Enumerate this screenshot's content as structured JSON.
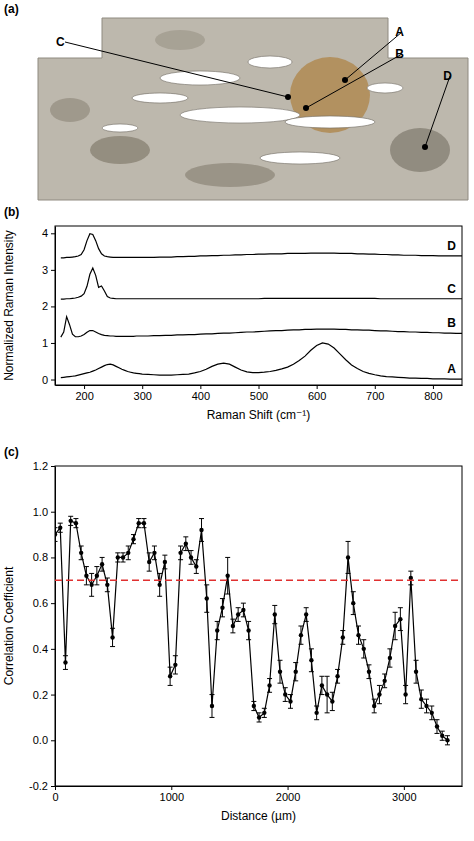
{
  "chart_data": [
    {
      "type": "image",
      "title": "(a)",
      "labels": [
        "C",
        "A",
        "B",
        "D"
      ]
    },
    {
      "type": "line",
      "title": "(b)",
      "x_label": "Raman Shift (cm⁻¹)",
      "y_label": "Normalized Raman Intensity",
      "xlim": [
        150,
        850
      ],
      "xticks": [
        200,
        300,
        400,
        500,
        600,
        700,
        800
      ],
      "ylim": [
        -0.15,
        4.2
      ],
      "yticks": [
        0,
        1,
        2,
        3,
        4
      ],
      "x": [
        160,
        165,
        170,
        175,
        180,
        185,
        190,
        195,
        200,
        205,
        210,
        215,
        220,
        225,
        230,
        235,
        240,
        245,
        250,
        255,
        260,
        265,
        270,
        275,
        280,
        285,
        290,
        295,
        300,
        310,
        320,
        330,
        340,
        350,
        360,
        370,
        380,
        390,
        400,
        410,
        420,
        430,
        440,
        450,
        460,
        470,
        480,
        490,
        500,
        510,
        520,
        530,
        540,
        550,
        560,
        570,
        580,
        590,
        600,
        610,
        620,
        630,
        640,
        650,
        660,
        670,
        680,
        690,
        700,
        710,
        720,
        730,
        740,
        750,
        760,
        770,
        780,
        790,
        800,
        810,
        820,
        830,
        840,
        850
      ],
      "series": [
        {
          "name": "A",
          "color": "#000000",
          "values": [
            0.05,
            0.06,
            0.07,
            0.08,
            0.09,
            0.1,
            0.12,
            0.14,
            0.16,
            0.18,
            0.2,
            0.23,
            0.26,
            0.3,
            0.34,
            0.38,
            0.41,
            0.42,
            0.4,
            0.36,
            0.32,
            0.28,
            0.25,
            0.22,
            0.2,
            0.18,
            0.17,
            0.16,
            0.15,
            0.14,
            0.13,
            0.12,
            0.12,
            0.12,
            0.13,
            0.14,
            0.15,
            0.18,
            0.22,
            0.28,
            0.36,
            0.42,
            0.45,
            0.42,
            0.34,
            0.26,
            0.21,
            0.19,
            0.19,
            0.2,
            0.22,
            0.25,
            0.29,
            0.34,
            0.42,
            0.52,
            0.64,
            0.8,
            0.93,
            1.0,
            0.97,
            0.86,
            0.7,
            0.54,
            0.4,
            0.3,
            0.22,
            0.17,
            0.13,
            0.1,
            0.08,
            0.07,
            0.06,
            0.05,
            0.04,
            0.04,
            0.03,
            0.03,
            0.02,
            0.02,
            0.02,
            0.01,
            0.01,
            0.01
          ]
        },
        {
          "name": "B",
          "color": "#000000",
          "values": [
            1.16,
            1.3,
            1.72,
            1.5,
            1.24,
            1.17,
            1.17,
            1.19,
            1.23,
            1.29,
            1.34,
            1.34,
            1.3,
            1.26,
            1.23,
            1.21,
            1.2,
            1.19,
            1.19,
            1.18,
            1.18,
            1.18,
            1.18,
            1.18,
            1.18,
            1.18,
            1.19,
            1.19,
            1.19,
            1.19,
            1.2,
            1.2,
            1.21,
            1.21,
            1.22,
            1.22,
            1.23,
            1.23,
            1.24,
            1.25,
            1.25,
            1.26,
            1.27,
            1.27,
            1.28,
            1.29,
            1.3,
            1.3,
            1.31,
            1.32,
            1.33,
            1.34,
            1.34,
            1.35,
            1.36,
            1.36,
            1.37,
            1.37,
            1.38,
            1.38,
            1.38,
            1.38,
            1.37,
            1.37,
            1.36,
            1.36,
            1.35,
            1.35,
            1.34,
            1.33,
            1.33,
            1.32,
            1.31,
            1.31,
            1.3,
            1.3,
            1.29,
            1.29,
            1.28,
            1.28,
            1.27,
            1.27,
            1.26,
            1.26
          ]
        },
        {
          "name": "C",
          "color": "#000000",
          "values": [
            2.2,
            2.2,
            2.21,
            2.21,
            2.22,
            2.23,
            2.25,
            2.28,
            2.35,
            2.55,
            2.88,
            3.05,
            2.85,
            2.52,
            2.56,
            2.42,
            2.27,
            2.23,
            2.22,
            2.21,
            2.21,
            2.21,
            2.21,
            2.21,
            2.21,
            2.21,
            2.21,
            2.21,
            2.21,
            2.21,
            2.21,
            2.21,
            2.21,
            2.21,
            2.21,
            2.21,
            2.21,
            2.21,
            2.21,
            2.21,
            2.21,
            2.21,
            2.21,
            2.21,
            2.21,
            2.21,
            2.21,
            2.21,
            2.21,
            2.22,
            2.22,
            2.22,
            2.22,
            2.22,
            2.22,
            2.22,
            2.22,
            2.22,
            2.22,
            2.22,
            2.22,
            2.22,
            2.22,
            2.22,
            2.22,
            2.22,
            2.22,
            2.22,
            2.22,
            2.21,
            2.21,
            2.21,
            2.21,
            2.21,
            2.21,
            2.21,
            2.21,
            2.21,
            2.21,
            2.21,
            2.21,
            2.21,
            2.21,
            2.21
          ]
        },
        {
          "name": "D",
          "color": "#000000",
          "values": [
            3.33,
            3.33,
            3.34,
            3.34,
            3.35,
            3.36,
            3.38,
            3.42,
            3.55,
            3.8,
            3.99,
            3.97,
            3.8,
            3.58,
            3.44,
            3.38,
            3.36,
            3.35,
            3.34,
            3.34,
            3.34,
            3.34,
            3.34,
            3.34,
            3.34,
            3.34,
            3.34,
            3.34,
            3.34,
            3.34,
            3.34,
            3.35,
            3.35,
            3.35,
            3.36,
            3.36,
            3.37,
            3.37,
            3.38,
            3.38,
            3.39,
            3.39,
            3.4,
            3.4,
            3.41,
            3.41,
            3.42,
            3.42,
            3.43,
            3.43,
            3.44,
            3.44,
            3.44,
            3.45,
            3.45,
            3.45,
            3.45,
            3.46,
            3.46,
            3.46,
            3.46,
            3.46,
            3.45,
            3.45,
            3.45,
            3.44,
            3.44,
            3.43,
            3.43,
            3.42,
            3.42,
            3.41,
            3.41,
            3.4,
            3.4,
            3.4,
            3.39,
            3.39,
            3.39,
            3.38,
            3.38,
            3.38,
            3.38,
            3.38
          ]
        }
      ]
    },
    {
      "type": "line",
      "title": "(c)",
      "x_label": "Distance (µm)",
      "y_label": "Correlation Coefficient",
      "xlim": [
        0,
        3500
      ],
      "xticks": [
        0,
        1000,
        2000,
        3000
      ],
      "ylim": [
        -0.2,
        1.2
      ],
      "yticks": [
        -0.2,
        {
          "value": 0,
          "label": "0.0"
        },
        0.2,
        0.4,
        0.6,
        0.8,
        {
          "value": 1,
          "label": "1.0"
        },
        1.2
      ],
      "series": [
        {
          "color": "#000000",
          "marker": "circle",
          "line_style": "solid",
          "x": [
            0,
            45,
            90,
            135,
            180,
            225,
            270,
            315,
            360,
            405,
            450,
            495,
            540,
            585,
            630,
            675,
            720,
            765,
            810,
            855,
            900,
            945,
            990,
            1035,
            1080,
            1125,
            1170,
            1215,
            1260,
            1305,
            1350,
            1395,
            1440,
            1485,
            1530,
            1575,
            1620,
            1665,
            1710,
            1755,
            1800,
            1845,
            1890,
            1935,
            1980,
            2025,
            2070,
            2115,
            2160,
            2205,
            2250,
            2295,
            2340,
            2385,
            2430,
            2475,
            2520,
            2565,
            2610,
            2655,
            2700,
            2745,
            2790,
            2835,
            2880,
            2925,
            2970,
            3015,
            3060,
            3105,
            3150,
            3195,
            3240,
            3285,
            3330,
            3375
          ],
          "values": [
            0.9,
            0.93,
            0.34,
            0.96,
            0.95,
            0.82,
            0.72,
            0.68,
            0.72,
            0.77,
            0.68,
            0.45,
            0.8,
            0.8,
            0.82,
            0.88,
            0.95,
            0.95,
            0.78,
            0.82,
            0.68,
            0.78,
            0.28,
            0.33,
            0.82,
            0.86,
            0.8,
            0.76,
            0.92,
            0.62,
            0.15,
            0.48,
            0.58,
            0.72,
            0.5,
            0.55,
            0.57,
            0.48,
            0.15,
            0.1,
            0.12,
            0.24,
            0.55,
            0.3,
            0.2,
            0.17,
            0.3,
            0.46,
            0.55,
            0.35,
            0.12,
            0.24,
            0.2,
            0.17,
            0.28,
            0.45,
            0.8,
            0.6,
            0.46,
            0.4,
            0.3,
            0.15,
            0.2,
            0.26,
            0.36,
            0.5,
            0.53,
            0.2,
            0.71,
            0.3,
            0.18,
            0.15,
            0.12,
            0.06,
            0.02,
            0.0
          ],
          "errors": [
            0.03,
            0.02,
            0.03,
            0.02,
            0.02,
            0.03,
            0.04,
            0.05,
            0.04,
            0.03,
            0.03,
            0.04,
            0.02,
            0.02,
            0.03,
            0.02,
            0.02,
            0.02,
            0.04,
            0.03,
            0.05,
            0.03,
            0.04,
            0.04,
            0.03,
            0.03,
            0.03,
            0.03,
            0.05,
            0.06,
            0.05,
            0.04,
            0.04,
            0.08,
            0.03,
            0.03,
            0.03,
            0.04,
            0.02,
            0.02,
            0.02,
            0.03,
            0.04,
            0.05,
            0.03,
            0.03,
            0.04,
            0.04,
            0.03,
            0.05,
            0.03,
            0.04,
            0.08,
            0.04,
            0.03,
            0.03,
            0.07,
            0.05,
            0.04,
            0.04,
            0.03,
            0.03,
            0.04,
            0.03,
            0.04,
            0.06,
            0.05,
            0.04,
            0.03,
            0.05,
            0.04,
            0.03,
            0.03,
            0.03,
            0.02,
            0.02
          ]
        },
        {
          "color": "#e03030",
          "line_style": "dashed",
          "x": [
            0,
            3500
          ],
          "values": [
            0.7,
            0.7
          ]
        }
      ]
    }
  ]
}
